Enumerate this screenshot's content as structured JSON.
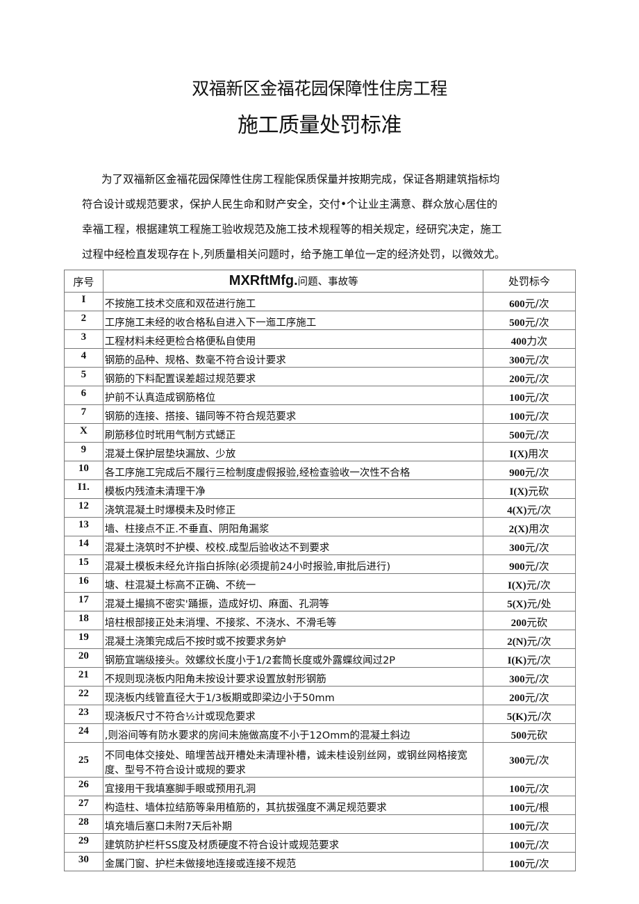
{
  "title_line1": "双福新区金福花园保障性住房工程",
  "title_line2": "施工质量处罚标准",
  "intro_lines": [
    "为了双福新区金福花园保障性住房工程能保质保量并按期完成，保证各期建筑指标均",
    "符合设计或规范要求，保护人民生命和财产安全，交付•个让业主满意、群众放心居住的",
    "幸福工程，根据建筑工程施工验收规范及施工技术规程等的相关规定，经研究决定，施工",
    "过程中经检直发现存在卜,列质量相关问题时，给予施工单位一定的经济处罚，以微效尤。"
  ],
  "table": {
    "headers": {
      "no": "序号",
      "desc_bold": "MXRftMfg.",
      "desc": "问题、事故等",
      "fine": "处罚标今"
    },
    "rows": [
      {
        "no": "I",
        "desc": "不按施工技术交底和双莅进行施工",
        "fine": "600",
        "unit": "元/次"
      },
      {
        "no": "2",
        "desc": "工序施工未经的收合格私自进入下一迤工序施工",
        "fine": "500",
        "unit": "元/次"
      },
      {
        "no": "3",
        "desc": "工程材料未经更检合格便私自使用",
        "fine": "400",
        "unit": "力次"
      },
      {
        "no": "4",
        "desc": "钢筋的品种、规格、数毫不符合设计要求",
        "fine": "300",
        "unit": "元/次"
      },
      {
        "no": "5",
        "desc": "钢筋的下料配置误差超过规范要求",
        "fine": "200",
        "unit": "元/次"
      },
      {
        "no": "6",
        "desc": "护前不认真造成钢筋格位",
        "fine": "100",
        "unit": "元/次"
      },
      {
        "no": "7",
        "desc": "钢筋的连接、搭接、锚同等不符合规范要求",
        "fine": "100",
        "unit": "元/次"
      },
      {
        "no": "X",
        "desc": "刷筋移位时玳用气制方式蟋正",
        "fine": "500",
        "unit": "元/次"
      },
      {
        "no": "9",
        "desc": "混凝土保护层垫块漏放、少放",
        "fine": "I(X)",
        "unit": "用次"
      },
      {
        "no": "10",
        "desc": "各工序施工完成后不履行三检制度虚假报验,经检查验收一次性不合格",
        "fine": "900",
        "unit": "元/次"
      },
      {
        "no": "I1.",
        "desc": "模板内残渣未清理干净",
        "fine": "I(X)",
        "unit": "元砍"
      },
      {
        "no": "12",
        "desc": "浇筑混凝土时爆模未及时修正",
        "fine": "4(X)",
        "unit": "元/次"
      },
      {
        "no": "13",
        "desc": "墙、柱接点不正.不垂直、阴阳角漏浆",
        "fine": "2(X)",
        "unit": "用次"
      },
      {
        "no": "14",
        "desc": "混凝土浇筑时不护模、校校.成型后验收达不到要求",
        "fine": "300",
        "unit": "元/次"
      },
      {
        "no": "15",
        "desc": "混凝土模板未经允许指白拆除(必须提前24小时报验,审批后进行)",
        "fine": "900",
        "unit": "元/次"
      },
      {
        "no": "16",
        "desc": "塘、柱混凝土标高不正确、不统一",
        "fine": "I(X)",
        "unit": "元/次"
      },
      {
        "no": "17",
        "desc": "混凝土撮搞不密实'踊振，造成好切、麻面、孔洞等",
        "fine": "5(X)",
        "unit": "元/处"
      },
      {
        "no": "18",
        "desc": "培柱根部接正处未消埋、不接浆、不浇水、不滑毛等",
        "fine": "200",
        "unit": "元砍"
      },
      {
        "no": "19",
        "desc": "混凝土浇策完成后不按时或不按要求务妒",
        "fine": "2(N)",
        "unit": "元/次"
      },
      {
        "no": "20",
        "desc": "钢筋宜端级接头。效螺纹长度小于1/2套筒长度或外露蝶纹闻过2P",
        "fine": "I(K)",
        "unit": "元/次"
      },
      {
        "no": "21",
        "desc": "不规则现浇板内阳角未按设计要求设置放射形钢筋",
        "fine": "300",
        "unit": "元/次"
      },
      {
        "no": "22",
        "desc": "现浇板内线管直径大于1/3板期或即梁边小于50mm",
        "fine": "200",
        "unit": "元/次"
      },
      {
        "no": "23",
        "desc": "现浇板尺寸不符合½计或现危要求",
        "fine": "5(K)",
        "unit": "元/次"
      },
      {
        "no": "24",
        "desc": ",则浴间等有防水要求的房间未施做高度不小于12Omm的混凝土斜边",
        "fine": "500",
        "unit": "元砍"
      },
      {
        "no": "25",
        "desc": "不同电体交接处、暗埋苦战开槽处未清理补槽，诚未桂设别丝网，或钢丝网格接宽度、型号不符合设计或规的要求",
        "fine": "300",
        "unit": "元/次"
      },
      {
        "no": "26",
        "desc": "宜接用干我填塞脚手眼或预用孔洞",
        "fine": "100",
        "unit": "元/次"
      },
      {
        "no": "27",
        "desc": "构造柱、墙体拉结筋等枭用植筋的，其抗拔强度不满足规范要求",
        "fine": "100",
        "unit": "元/根"
      },
      {
        "no": "28",
        "desc": "填充墙后塞口未附7天后补期",
        "fine": "100",
        "unit": "元/次"
      },
      {
        "no": "29",
        "desc": "建筑防护栏杆SS度及材质硬度不符合设计或规范要求",
        "fine": "100",
        "unit": "元/次"
      },
      {
        "no": "30",
        "desc": "金属门窗、护栏未做接地连接或连接不规范",
        "fine": "100",
        "unit": "元/次"
      }
    ]
  }
}
